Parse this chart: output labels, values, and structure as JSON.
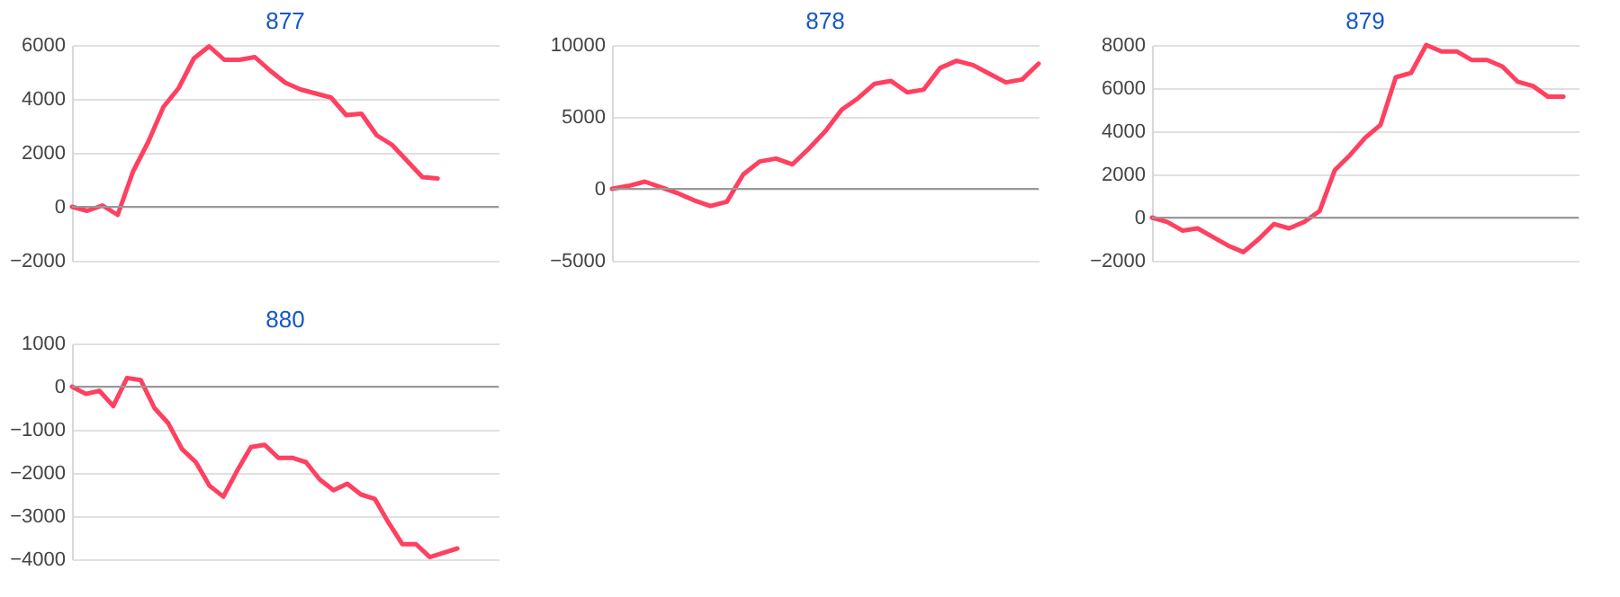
{
  "chart_data": [
    {
      "type": "line",
      "title": "877",
      "categories": [
        null,
        null,
        null,
        null,
        null,
        null,
        null,
        null,
        null,
        null,
        null,
        null,
        null,
        null,
        null,
        null,
        null,
        null,
        null,
        null,
        null,
        null,
        null,
        null,
        null,
        null,
        null,
        null,
        null
      ],
      "series": [
        {
          "color": "#ff4060",
          "values": [
            0,
            -150,
            50,
            -300,
            1300,
            2400,
            3700,
            4400,
            5500,
            5950,
            5450,
            5450,
            5550,
            5050,
            4600,
            4350,
            4200,
            4050,
            3400,
            3450,
            2650,
            2300,
            1700,
            1100,
            1050,
            null,
            null,
            null,
            null
          ]
        }
      ],
      "ylim": [
        -2000,
        6000
      ],
      "yticks": [
        -2000,
        0,
        2000,
        4000,
        6000
      ],
      "grid": "y",
      "tick_labels": "y",
      "legend": false,
      "ref_lines": [
        {
          "axis": "y",
          "value": 0,
          "color": "#999999"
        }
      ]
    },
    {
      "type": "line",
      "title": "878",
      "categories": [
        null,
        null,
        null,
        null,
        null,
        null,
        null,
        null,
        null,
        null,
        null,
        null,
        null,
        null,
        null,
        null,
        null,
        null,
        null,
        null,
        null,
        null,
        null,
        null,
        null,
        null,
        null
      ],
      "series": [
        {
          "color": "#ff4060",
          "values": [
            0,
            200,
            500,
            100,
            -300,
            -800,
            -1200,
            -900,
            1000,
            1900,
            2100,
            1700,
            2800,
            4000,
            5500,
            6300,
            7300,
            7500,
            6700,
            6900,
            8400,
            8900,
            8600,
            8000,
            7400,
            7600,
            8700
          ]
        }
      ],
      "ylim": [
        -5000,
        10000
      ],
      "yticks": [
        -5000,
        0,
        5000,
        10000
      ],
      "grid": "y",
      "tick_labels": "y",
      "legend": false,
      "ref_lines": [
        {
          "axis": "y",
          "value": 0,
          "color": "#999999"
        }
      ]
    },
    {
      "type": "line",
      "title": "879",
      "categories": [
        null,
        null,
        null,
        null,
        null,
        null,
        null,
        null,
        null,
        null,
        null,
        null,
        null,
        null,
        null,
        null,
        null,
        null,
        null,
        null,
        null,
        null,
        null,
        null,
        null,
        null,
        null,
        null,
        null
      ],
      "series": [
        {
          "color": "#ff4060",
          "values": [
            0,
            -200,
            -600,
            -500,
            -900,
            -1300,
            -1600,
            -1000,
            -300,
            -500,
            -200,
            300,
            2200,
            2900,
            3700,
            4300,
            6500,
            6700,
            8000,
            7700,
            7700,
            7300,
            7300,
            7000,
            6300,
            6100,
            5600,
            5600,
            null
          ]
        }
      ],
      "ylim": [
        -2000,
        8000
      ],
      "yticks": [
        -2000,
        0,
        2000,
        4000,
        6000,
        8000
      ],
      "grid": "y",
      "tick_labels": "y",
      "legend": false,
      "ref_lines": [
        {
          "axis": "y",
          "value": 0,
          "color": "#999999"
        }
      ]
    },
    {
      "type": "line",
      "title": "880",
      "categories": [
        null,
        null,
        null,
        null,
        null,
        null,
        null,
        null,
        null,
        null,
        null,
        null,
        null,
        null,
        null,
        null,
        null,
        null,
        null,
        null,
        null,
        null,
        null,
        null,
        null,
        null,
        null,
        null,
        null,
        null,
        null,
        null
      ],
      "series": [
        {
          "color": "#ff4060",
          "values": [
            0,
            -170,
            -100,
            -450,
            200,
            150,
            -500,
            -850,
            -1450,
            -1750,
            -2300,
            -2550,
            -1950,
            -1400,
            -1350,
            -1650,
            -1650,
            -1750,
            -2150,
            -2400,
            -2250,
            -2500,
            -2600,
            -3150,
            -3650,
            -3650,
            -3950,
            -3850,
            -3750,
            null,
            null,
            null
          ]
        }
      ],
      "ylim": [
        -4000,
        1000
      ],
      "yticks": [
        -4000,
        -3000,
        -2000,
        -1000,
        0,
        1000
      ],
      "grid": "y",
      "tick_labels": "y",
      "legend": false,
      "ref_lines": [
        {
          "axis": "y",
          "value": 0,
          "color": "#999999"
        }
      ]
    }
  ]
}
